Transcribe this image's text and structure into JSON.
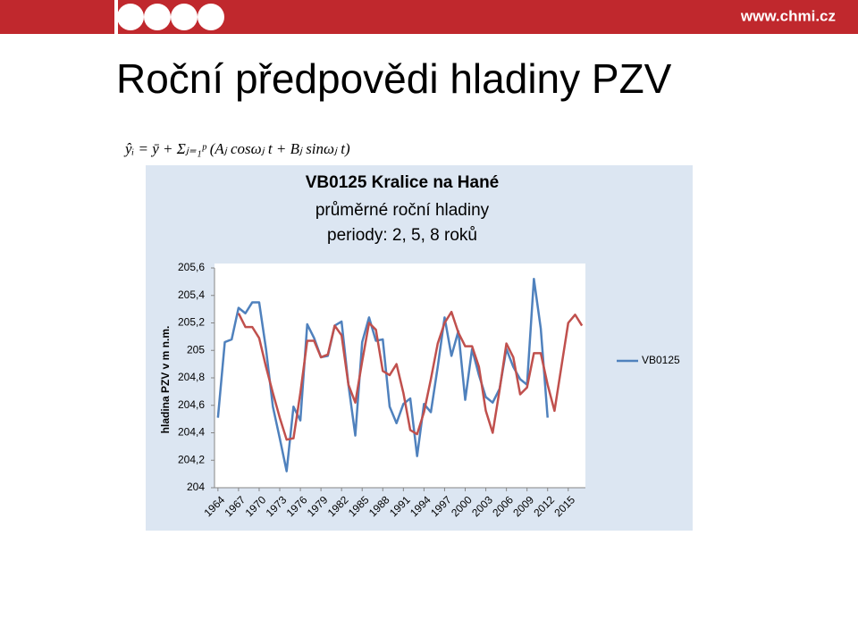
{
  "header": {
    "site": "www.chmi.cz"
  },
  "slide_title": "Roční předpovědi hladiny PZV",
  "formula": "ŷᵢ = ȳ + Σⱼ₌₁ᵖ (Aⱼ cosωⱼ t + Bⱼ sinωⱼ t)",
  "chart_data": {
    "type": "line",
    "title": [
      "VB0125 Kralice na Hané",
      "průměrné roční hladiny",
      "periody: 2, 5, 8 roků"
    ],
    "y_label": "hladina PZV v m n.m.",
    "x": [
      1964,
      1965,
      1966,
      1967,
      1968,
      1969,
      1970,
      1971,
      1972,
      1973,
      1974,
      1975,
      1976,
      1977,
      1978,
      1979,
      1980,
      1981,
      1982,
      1983,
      1984,
      1985,
      1986,
      1987,
      1988,
      1989,
      1990,
      1991,
      1992,
      1993,
      1994,
      1995,
      1996,
      1997,
      1998,
      1999,
      2000,
      2001,
      2002,
      2003,
      2004,
      2005,
      2006,
      2007,
      2008,
      2009,
      2010,
      2011,
      2012,
      2013,
      2014,
      2015,
      2016,
      2017
    ],
    "xlim": [
      1963.5,
      2017.5
    ],
    "xticks": [
      1964,
      1967,
      1970,
      1973,
      1976,
      1979,
      1982,
      1985,
      1988,
      1991,
      1994,
      1997,
      2000,
      2003,
      2006,
      2009,
      2012,
      2015
    ],
    "ylim": [
      204,
      205.6
    ],
    "yticks": [
      204,
      {
        "value": 204.2,
        "label": "204,2"
      },
      {
        "value": 204.4,
        "label": "204,4"
      },
      {
        "value": 204.6,
        "label": "204,6"
      },
      {
        "value": 204.8,
        "label": "204,8"
      },
      205,
      {
        "value": 205.2,
        "label": "205,2"
      },
      {
        "value": 205.4,
        "label": "205,4"
      },
      {
        "value": 205.6,
        "label": "205,6"
      }
    ],
    "grid": false,
    "legend": "right",
    "series": [
      {
        "name": "VB0125",
        "color": "#4f81bd",
        "values": [
          204.51,
          205.06,
          205.08,
          205.31,
          205.27,
          205.35,
          205.35,
          205.01,
          204.59,
          204.36,
          204.12,
          204.59,
          204.49,
          205.19,
          205.09,
          204.95,
          204.96,
          205.18,
          205.21,
          204.75,
          204.38,
          205.06,
          205.24,
          205.07,
          205.08,
          204.59,
          204.47,
          204.61,
          204.65,
          204.23,
          204.61,
          204.55,
          204.88,
          205.24,
          204.96,
          205.14,
          204.64,
          205.01,
          204.82,
          204.66,
          204.62,
          204.72,
          205.01,
          204.88,
          204.79,
          204.75,
          205.52,
          205.16,
          204.51,
          null,
          null,
          null,
          null,
          null
        ]
      },
      {
        "color": "#c0504d",
        "values": [
          null,
          null,
          null,
          205.27,
          205.17,
          205.17,
          205.09,
          204.88,
          204.69,
          204.51,
          204.35,
          204.36,
          204.69,
          205.07,
          205.07,
          204.95,
          204.97,
          205.18,
          205.11,
          204.75,
          204.62,
          204.92,
          205.2,
          205.15,
          204.85,
          204.82,
          204.9,
          204.69,
          204.42,
          204.39,
          204.55,
          204.79,
          205.05,
          205.2,
          205.28,
          205.13,
          205.03,
          205.03,
          204.88,
          204.56,
          204.4,
          204.71,
          205.05,
          204.95,
          204.68,
          204.73,
          204.98,
          204.98,
          204.75,
          204.56,
          204.88,
          205.2,
          205.26,
          205.18
        ]
      }
    ]
  }
}
